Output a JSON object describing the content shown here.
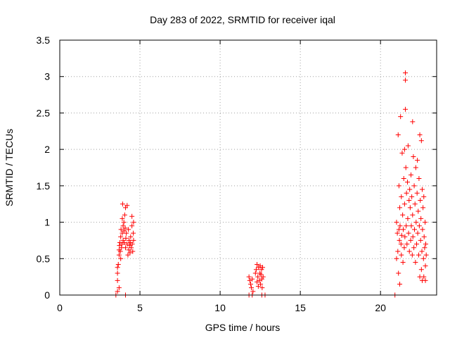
{
  "chart_data": {
    "type": "scatter",
    "title": "Day 283 of 2022, SRMTID for receiver iqal",
    "xlabel": "GPS time / hours",
    "ylabel": "SRMTID / TECUs",
    "xlim": [
      0,
      23.5
    ],
    "ylim": [
      0,
      3.5
    ],
    "xticks": [
      0,
      5,
      10,
      15,
      20
    ],
    "xtick_labels": [
      "0",
      "5",
      "10",
      "15",
      "20"
    ],
    "yticks": [
      0,
      0.5,
      1,
      1.5,
      2,
      2.5,
      3,
      3.5
    ],
    "ytick_labels": [
      "0",
      "0.5",
      "1",
      "1.5",
      "2",
      "2.5",
      "3",
      "3.5"
    ],
    "grid": true,
    "marker": "+",
    "colors": {
      "series": "#ff0000",
      "axis": "#000000",
      "grid": "#a0a0a0"
    },
    "series": [
      {
        "name": "SRMTID",
        "points": [
          [
            3.5,
            0.0
          ],
          [
            3.6,
            0.05
          ],
          [
            3.6,
            0.2
          ],
          [
            3.6,
            0.3
          ],
          [
            3.6,
            0.38
          ],
          [
            3.65,
            0.42
          ],
          [
            3.7,
            0.1
          ],
          [
            3.7,
            0.55
          ],
          [
            3.7,
            0.62
          ],
          [
            3.72,
            0.68
          ],
          [
            3.75,
            0.72
          ],
          [
            3.78,
            0.6
          ],
          [
            3.8,
            0.5
          ],
          [
            3.8,
            0.8
          ],
          [
            3.82,
            0.9
          ],
          [
            3.85,
            0.65
          ],
          [
            3.88,
            0.7
          ],
          [
            3.9,
            1.05
          ],
          [
            3.9,
            0.85
          ],
          [
            3.92,
            1.25
          ],
          [
            3.95,
            0.95
          ],
          [
            3.95,
            0.75
          ],
          [
            4.0,
            1.0
          ],
          [
            4.0,
            0.88
          ],
          [
            4.02,
            0.72
          ],
          [
            4.05,
            1.1
          ],
          [
            4.08,
            0.92
          ],
          [
            4.1,
            1.2
          ],
          [
            4.1,
            0.65
          ],
          [
            4.12,
            0.78
          ],
          [
            4.15,
            0.85
          ],
          [
            4.2,
            1.23
          ],
          [
            4.2,
            0.7
          ],
          [
            4.25,
            0.55
          ],
          [
            4.28,
            0.9
          ],
          [
            4.3,
            0.62
          ],
          [
            4.32,
            0.75
          ],
          [
            4.35,
            0.68
          ],
          [
            4.38,
            0.58
          ],
          [
            4.4,
            0.72
          ],
          [
            4.42,
            0.8
          ],
          [
            4.45,
            0.65
          ],
          [
            4.5,
            1.08
          ],
          [
            4.5,
            0.95
          ],
          [
            4.52,
            0.7
          ],
          [
            4.55,
            0.6
          ],
          [
            4.58,
            0.85
          ],
          [
            4.6,
            1.0
          ],
          [
            4.6,
            0.75
          ],
          [
            4.1,
            0.0
          ],
          [
            11.8,
            0.25
          ],
          [
            11.85,
            0.2
          ],
          [
            11.9,
            0.15
          ],
          [
            11.95,
            0.1
          ],
          [
            12.0,
            0.22
          ],
          [
            12.05,
            0.05
          ],
          [
            12.2,
            0.3
          ],
          [
            12.25,
            0.35
          ],
          [
            12.3,
            0.18
          ],
          [
            12.3,
            0.42
          ],
          [
            12.35,
            0.25
          ],
          [
            12.38,
            0.12
          ],
          [
            12.4,
            0.38
          ],
          [
            12.45,
            0.2
          ],
          [
            12.48,
            0.3
          ],
          [
            12.5,
            0.4
          ],
          [
            12.52,
            0.15
          ],
          [
            12.55,
            0.28
          ],
          [
            12.58,
            0.35
          ],
          [
            12.6,
            0.22
          ],
          [
            12.62,
            0.1
          ],
          [
            12.65,
            0.38
          ],
          [
            12.68,
            0.25
          ],
          [
            11.8,
            0.0
          ],
          [
            12.0,
            0.0
          ],
          [
            12.6,
            0.0
          ],
          [
            12.8,
            0.0
          ],
          [
            20.9,
            0.0
          ],
          [
            21.0,
            1.0
          ],
          [
            21.0,
            0.5
          ],
          [
            21.05,
            0.85
          ],
          [
            21.08,
            0.6
          ],
          [
            21.1,
            2.2
          ],
          [
            21.12,
            0.3
          ],
          [
            21.15,
            1.5
          ],
          [
            21.15,
            0.9
          ],
          [
            21.18,
            0.75
          ],
          [
            21.2,
            0.15
          ],
          [
            21.2,
            1.2
          ],
          [
            21.22,
            0.95
          ],
          [
            21.25,
            2.45
          ],
          [
            21.28,
            0.7
          ],
          [
            21.3,
            1.35
          ],
          [
            21.3,
            0.55
          ],
          [
            21.32,
            0.82
          ],
          [
            21.35,
            1.95
          ],
          [
            21.38,
            1.1
          ],
          [
            21.4,
            0.45
          ],
          [
            21.42,
            0.9
          ],
          [
            21.45,
            1.6
          ],
          [
            21.48,
            0.65
          ],
          [
            21.5,
            2.0
          ],
          [
            21.5,
            1.25
          ],
          [
            21.52,
            0.8
          ],
          [
            21.55,
            2.55
          ],
          [
            21.55,
            2.95
          ],
          [
            21.55,
            3.05
          ],
          [
            21.58,
            1.75
          ],
          [
            21.6,
            0.95
          ],
          [
            21.62,
            1.4
          ],
          [
            21.65,
            0.7
          ],
          [
            21.68,
            1.55
          ],
          [
            21.7,
            1.05
          ],
          [
            21.72,
            2.05
          ],
          [
            21.75,
            0.85
          ],
          [
            21.78,
            1.3
          ],
          [
            21.8,
            0.6
          ],
          [
            21.82,
            1.45
          ],
          [
            21.85,
            1.2
          ],
          [
            21.88,
            0.75
          ],
          [
            21.9,
            1.65
          ],
          [
            21.92,
            0.95
          ],
          [
            21.95,
            1.35
          ],
          [
            21.98,
            0.55
          ],
          [
            22.0,
            2.38
          ],
          [
            22.0,
            1.1
          ],
          [
            22.02,
            0.8
          ],
          [
            22.05,
            1.9
          ],
          [
            22.08,
            0.65
          ],
          [
            22.1,
            1.5
          ],
          [
            22.12,
            0.9
          ],
          [
            22.15,
            1.25
          ],
          [
            22.18,
            0.45
          ],
          [
            22.2,
            1.75
          ],
          [
            22.22,
            1.0
          ],
          [
            22.25,
            0.7
          ],
          [
            22.28,
            1.4
          ],
          [
            22.3,
            1.85
          ],
          [
            22.32,
            0.85
          ],
          [
            22.35,
            1.15
          ],
          [
            22.38,
            0.55
          ],
          [
            22.4,
            1.6
          ],
          [
            22.42,
            0.95
          ],
          [
            22.45,
            2.2
          ],
          [
            22.45,
            0.25
          ],
          [
            22.48,
            1.3
          ],
          [
            22.5,
            0.75
          ],
          [
            22.52,
            1.05
          ],
          [
            22.55,
            2.12
          ],
          [
            22.55,
            0.35
          ],
          [
            22.58,
            0.6
          ],
          [
            22.6,
            1.45
          ],
          [
            22.62,
            0.9
          ],
          [
            22.65,
            1.2
          ],
          [
            22.68,
            0.5
          ],
          [
            22.7,
            1.35
          ],
          [
            22.72,
            0.8
          ],
          [
            22.75,
            0.65
          ],
          [
            22.78,
            1.0
          ],
          [
            22.8,
            0.4
          ],
          [
            22.82,
            0.7
          ],
          [
            22.85,
            0.55
          ],
          [
            22.6,
            0.2
          ],
          [
            22.7,
            0.25
          ],
          [
            22.8,
            0.2
          ]
        ]
      }
    ]
  }
}
